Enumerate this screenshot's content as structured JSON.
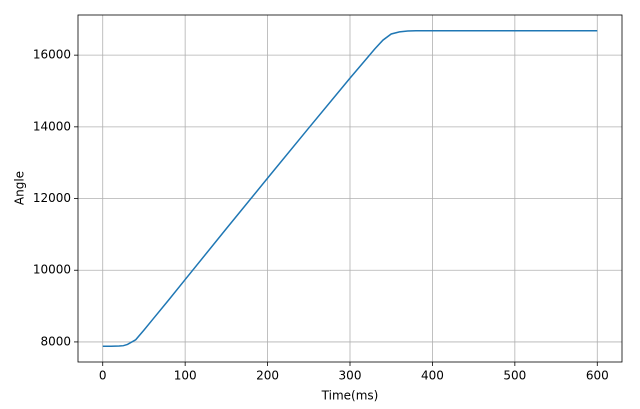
{
  "chart_data": {
    "type": "line",
    "x_label": "Time(ms)",
    "y_label": "Angle",
    "x": [
      0,
      10,
      20,
      25,
      30,
      40,
      50,
      60,
      80,
      100,
      150,
      200,
      250,
      300,
      320,
      330,
      340,
      350,
      360,
      370,
      380,
      400,
      500,
      600
    ],
    "series": [
      {
        "color": "#1f77b4",
        "values": [
          7880,
          7880,
          7885,
          7895,
          7930,
          8060,
          8330,
          8610,
          9170,
          9740,
          11160,
          12570,
          13970,
          15360,
          15900,
          16170,
          16420,
          16590,
          16650,
          16675,
          16680,
          16680,
          16680,
          16680
        ]
      }
    ],
    "xlim": [
      -30,
      630
    ],
    "ylim": [
      7440,
      17120
    ],
    "xticks": [
      0,
      100,
      200,
      300,
      400,
      500,
      600
    ],
    "yticks": [
      8000,
      10000,
      12000,
      14000,
      16000
    ],
    "grid": true
  }
}
